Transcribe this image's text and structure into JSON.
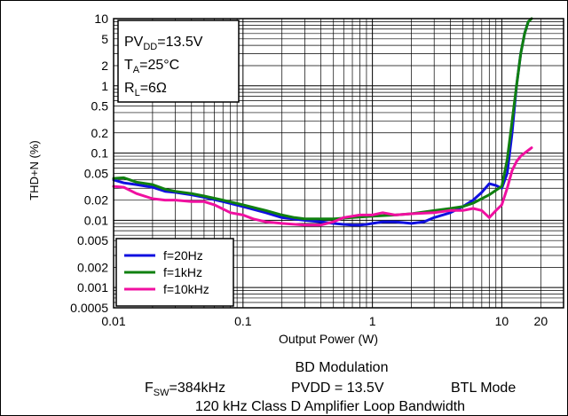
{
  "chart_data": {
    "type": "line",
    "title": "",
    "xlabel": "Output Power (W)",
    "ylabel": "THD+N (%)",
    "x_scale": "log",
    "y_scale": "log",
    "xlim": [
      0.01,
      30
    ],
    "ylim": [
      0.0005,
      10
    ],
    "x_ticks": [
      {
        "value": 0.01,
        "label": "0.01"
      },
      {
        "value": 0.1,
        "label": "0.1"
      },
      {
        "value": 1,
        "label": "1"
      },
      {
        "value": 10,
        "label": "10"
      },
      {
        "value": 20,
        "label": "20"
      }
    ],
    "y_ticks": [
      {
        "value": 10,
        "label": "10"
      },
      {
        "value": 5,
        "label": "5"
      },
      {
        "value": 2,
        "label": "2"
      },
      {
        "value": 1,
        "label": "1"
      },
      {
        "value": 0.5,
        "label": "0.5"
      },
      {
        "value": 0.2,
        "label": "0.2"
      },
      {
        "value": 0.1,
        "label": "0.1"
      },
      {
        "value": 0.05,
        "label": "0.05"
      },
      {
        "value": 0.02,
        "label": "0.02"
      },
      {
        "value": 0.01,
        "label": "0.01"
      },
      {
        "value": 0.005,
        "label": "0.005"
      },
      {
        "value": 0.002,
        "label": "0.002"
      },
      {
        "value": 0.001,
        "label": "0.001"
      },
      {
        "value": 0.0005,
        "label": "0.0005"
      }
    ],
    "grid": true,
    "legend_position": "bottom-left",
    "conditions": [
      {
        "main": "PV",
        "sub": "DD",
        "rest": "=13.5V"
      },
      {
        "main": "T",
        "sub": "A",
        "rest": "=25°C"
      },
      {
        "main": "R",
        "sub": "L",
        "rest": "=6Ω"
      }
    ],
    "caption": {
      "line1": "BD Modulation",
      "line2_main": "F",
      "line2_sub": "SW",
      "line2_rest": "=384kHz",
      "line2_pvdd": "PVDD = 13.5V",
      "line2_mode": "BTL Mode",
      "line3": "120 kHz Class D Amplifier Loop Bandwidth"
    },
    "series": [
      {
        "name": "f=20Hz",
        "color": "#1010e0",
        "points": [
          [
            0.01,
            0.04
          ],
          [
            0.012,
            0.036
          ],
          [
            0.015,
            0.034
          ],
          [
            0.02,
            0.031
          ],
          [
            0.025,
            0.027
          ],
          [
            0.03,
            0.026
          ],
          [
            0.04,
            0.024
          ],
          [
            0.05,
            0.022
          ],
          [
            0.07,
            0.019
          ],
          [
            0.1,
            0.016
          ],
          [
            0.15,
            0.013
          ],
          [
            0.2,
            0.011
          ],
          [
            0.3,
            0.01
          ],
          [
            0.4,
            0.0095
          ],
          [
            0.5,
            0.009
          ],
          [
            0.6,
            0.0087
          ],
          [
            0.7,
            0.0085
          ],
          [
            0.8,
            0.0085
          ],
          [
            0.9,
            0.0087
          ],
          [
            1,
            0.009
          ],
          [
            1.2,
            0.0095
          ],
          [
            1.5,
            0.0095
          ],
          [
            2,
            0.009
          ],
          [
            2.5,
            0.0095
          ],
          [
            3,
            0.011
          ],
          [
            4,
            0.013
          ],
          [
            5,
            0.016
          ],
          [
            6,
            0.02
          ],
          [
            7,
            0.026
          ],
          [
            8,
            0.035
          ],
          [
            9,
            0.033
          ],
          [
            10,
            0.03
          ],
          [
            11,
            0.05
          ],
          [
            12,
            0.2
          ],
          [
            13,
            1
          ],
          [
            14,
            3
          ],
          [
            15,
            6
          ],
          [
            16,
            9
          ]
        ]
      },
      {
        "name": "f=1kHz",
        "color": "#108010",
        "points": [
          [
            0.01,
            0.042
          ],
          [
            0.012,
            0.043
          ],
          [
            0.015,
            0.037
          ],
          [
            0.02,
            0.034
          ],
          [
            0.025,
            0.029
          ],
          [
            0.03,
            0.027
          ],
          [
            0.04,
            0.025
          ],
          [
            0.05,
            0.023
          ],
          [
            0.07,
            0.02
          ],
          [
            0.1,
            0.017
          ],
          [
            0.15,
            0.014
          ],
          [
            0.2,
            0.012
          ],
          [
            0.25,
            0.011
          ],
          [
            0.3,
            0.0105
          ],
          [
            0.4,
            0.0105
          ],
          [
            0.5,
            0.0105
          ],
          [
            0.7,
            0.011
          ],
          [
            1,
            0.0115
          ],
          [
            1.5,
            0.012
          ],
          [
            2,
            0.0125
          ],
          [
            3,
            0.014
          ],
          [
            4,
            0.015
          ],
          [
            5,
            0.016
          ],
          [
            6,
            0.018
          ],
          [
            7,
            0.021
          ],
          [
            8,
            0.024
          ],
          [
            9,
            0.028
          ],
          [
            10,
            0.032
          ],
          [
            11,
            0.08
          ],
          [
            12,
            0.3
          ],
          [
            13,
            1
          ],
          [
            14,
            3
          ],
          [
            15,
            6
          ],
          [
            16,
            9
          ],
          [
            17,
            10
          ]
        ]
      },
      {
        "name": "f=10kHz",
        "color": "#f010a0",
        "points": [
          [
            0.01,
            0.032
          ],
          [
            0.012,
            0.031
          ],
          [
            0.015,
            0.025
          ],
          [
            0.02,
            0.021
          ],
          [
            0.025,
            0.02
          ],
          [
            0.03,
            0.02
          ],
          [
            0.04,
            0.019
          ],
          [
            0.05,
            0.019
          ],
          [
            0.06,
            0.017
          ],
          [
            0.08,
            0.013
          ],
          [
            0.1,
            0.012
          ],
          [
            0.12,
            0.0105
          ],
          [
            0.15,
            0.0095
          ],
          [
            0.2,
            0.009
          ],
          [
            0.3,
            0.0085
          ],
          [
            0.4,
            0.0085
          ],
          [
            0.5,
            0.0095
          ],
          [
            0.6,
            0.011
          ],
          [
            0.8,
            0.012
          ],
          [
            1,
            0.012
          ],
          [
            1.2,
            0.013
          ],
          [
            1.5,
            0.012
          ],
          [
            2,
            0.0125
          ],
          [
            3,
            0.013
          ],
          [
            4,
            0.014
          ],
          [
            5,
            0.014
          ],
          [
            6,
            0.015
          ],
          [
            7,
            0.014
          ],
          [
            8,
            0.011
          ],
          [
            9,
            0.014
          ],
          [
            10,
            0.017
          ],
          [
            11,
            0.03
          ],
          [
            12,
            0.055
          ],
          [
            13,
            0.075
          ],
          [
            14,
            0.09
          ],
          [
            15,
            0.1
          ],
          [
            16,
            0.11
          ],
          [
            17,
            0.12
          ]
        ]
      }
    ]
  }
}
